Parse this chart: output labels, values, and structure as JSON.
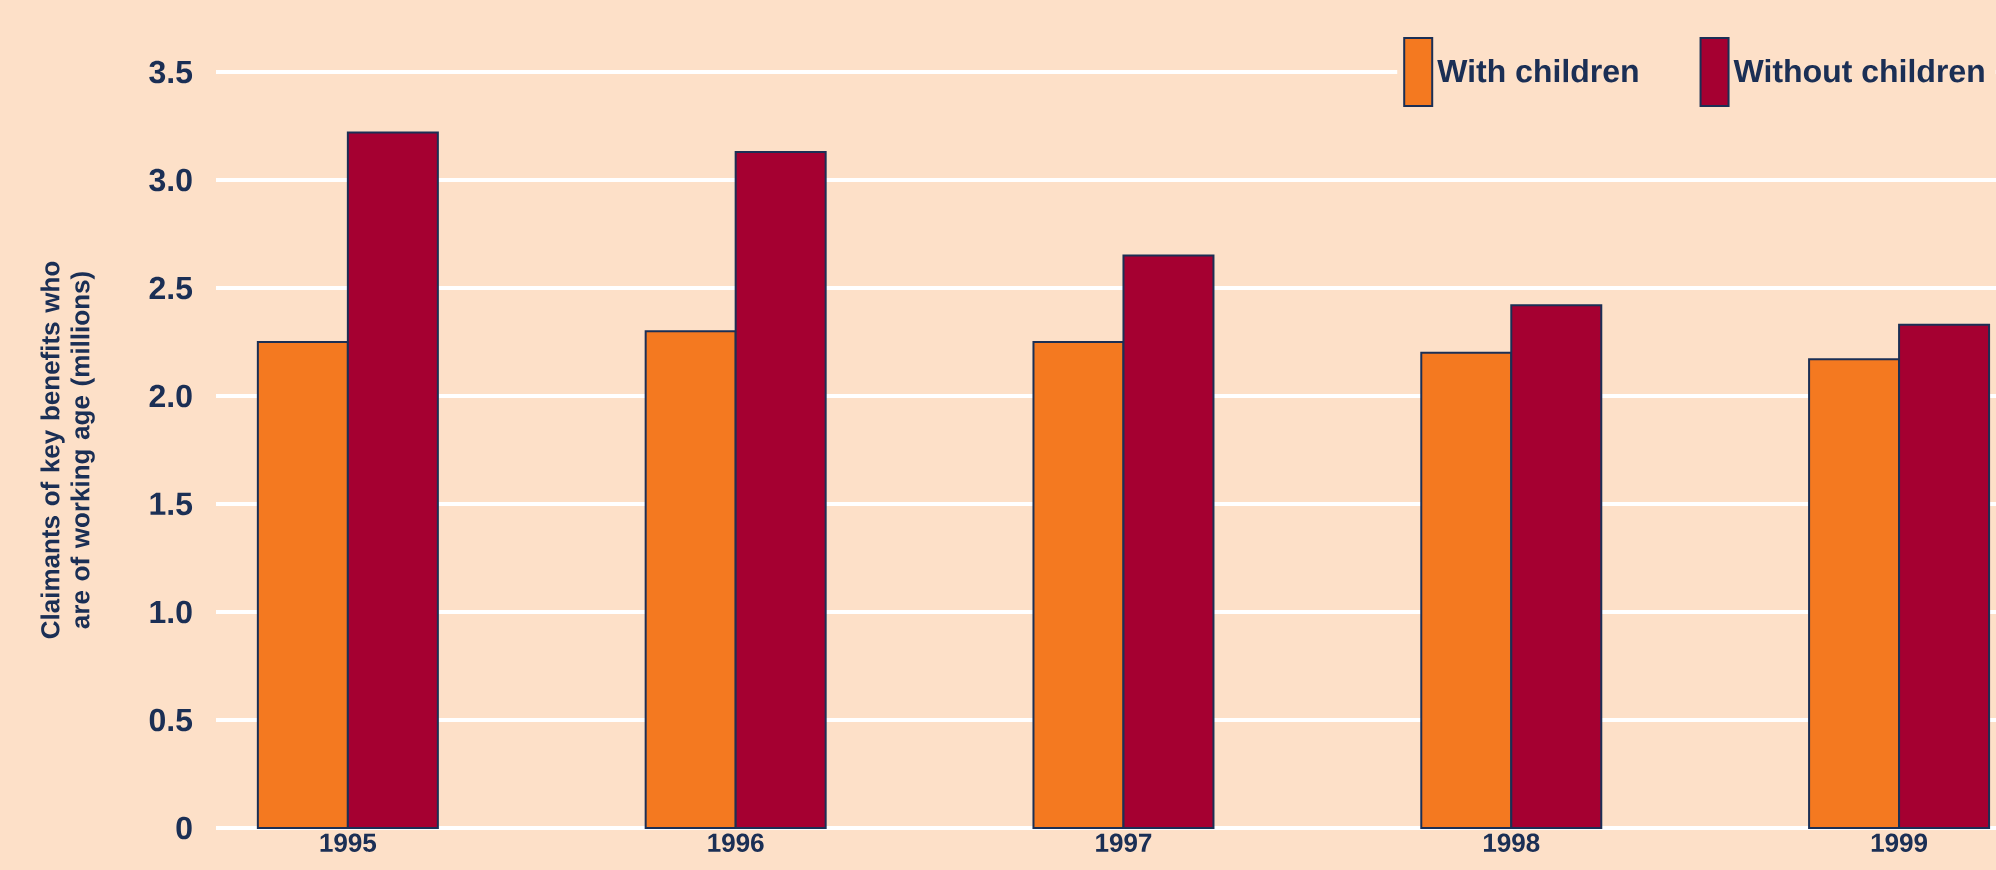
{
  "chart_data": {
    "type": "bar",
    "ylabel": "Claimants of key benefits who are of working age (millions)",
    "categories": [
      "1995",
      "1996",
      "1997",
      "1998",
      "1999"
    ],
    "series": [
      {
        "name": "With children",
        "color": "#f47920",
        "values": [
          2.25,
          2.3,
          2.25,
          2.2,
          2.17
        ]
      },
      {
        "name": "Without children",
        "color": "#a50031",
        "values": [
          3.22,
          3.13,
          2.65,
          2.42,
          2.33
        ]
      }
    ],
    "ylim": [
      0,
      3.5
    ],
    "yticks": [
      0,
      {
        "value": 0.5,
        "label": "0.5"
      },
      {
        "value": 1,
        "label": "1.0"
      },
      {
        "value": 1.5,
        "label": "1.5"
      },
      {
        "value": 2,
        "label": "2.0"
      },
      {
        "value": 2.5,
        "label": "2.5"
      },
      {
        "value": 3,
        "label": "3.0"
      },
      {
        "value": 3.5,
        "label": "3.5"
      }
    ],
    "grid": "y",
    "legend": "top right"
  }
}
